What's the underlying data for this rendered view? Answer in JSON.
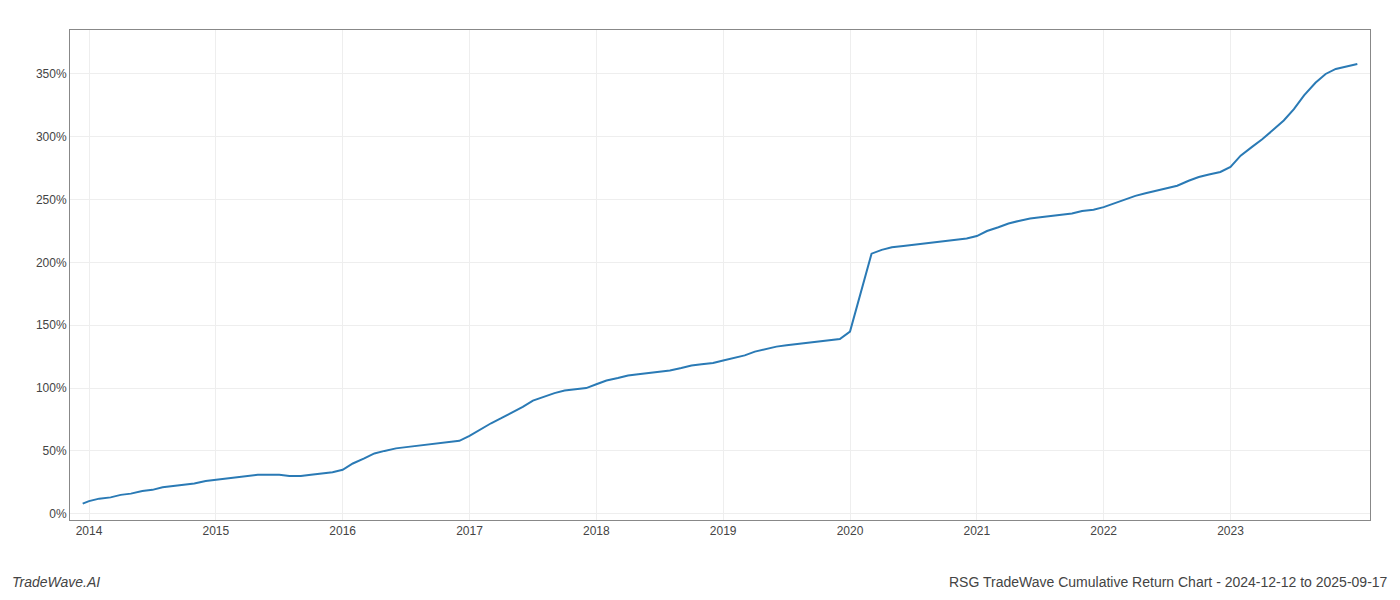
{
  "chart_data": {
    "type": "line",
    "title": "RSG TradeWave Cumulative Return Chart - 2024-12-12 to 2025-09-17",
    "annotations": [
      "TradeWave.AI"
    ],
    "color": "#2a7ab5",
    "grid": true,
    "x": [
      2013.95,
      2014.0,
      2014.08,
      2014.17,
      2014.25,
      2014.33,
      2014.42,
      2014.5,
      2014.58,
      2014.67,
      2014.75,
      2014.83,
      2014.92,
      2015.0,
      2015.08,
      2015.17,
      2015.25,
      2015.33,
      2015.42,
      2015.5,
      2015.58,
      2015.67,
      2015.75,
      2015.83,
      2015.92,
      2016.0,
      2016.08,
      2016.17,
      2016.25,
      2016.33,
      2016.42,
      2016.5,
      2016.58,
      2016.67,
      2016.75,
      2016.83,
      2016.92,
      2017.0,
      2017.08,
      2017.17,
      2017.25,
      2017.33,
      2017.42,
      2017.5,
      2017.58,
      2017.67,
      2017.75,
      2017.83,
      2017.92,
      2018.0,
      2018.08,
      2018.17,
      2018.25,
      2018.33,
      2018.42,
      2018.5,
      2018.58,
      2018.67,
      2018.75,
      2018.83,
      2018.92,
      2019.0,
      2019.08,
      2019.17,
      2019.25,
      2019.33,
      2019.42,
      2019.5,
      2019.58,
      2019.67,
      2019.75,
      2019.83,
      2019.92,
      2020.0,
      2020.08,
      2020.17,
      2020.25,
      2020.33,
      2020.42,
      2020.5,
      2020.58,
      2020.67,
      2020.75,
      2020.83,
      2020.92,
      2021.0,
      2021.08,
      2021.17,
      2021.25,
      2021.33,
      2021.42,
      2021.5,
      2021.58,
      2021.67,
      2021.75,
      2021.83,
      2021.92,
      2022.0,
      2022.08,
      2022.17,
      2022.25,
      2022.33,
      2022.42,
      2022.5,
      2022.58,
      2022.67,
      2022.75,
      2022.83,
      2022.92,
      2023.0,
      2023.08,
      2023.17,
      2023.25,
      2023.33,
      2023.42,
      2023.5,
      2023.58,
      2023.67,
      2023.75,
      2023.83,
      2023.92,
      2024.0
    ],
    "values": [
      8,
      10,
      12,
      13,
      15,
      16,
      18,
      19,
      21,
      22,
      23,
      24,
      26,
      27,
      28,
      29,
      30,
      31,
      31,
      31,
      30,
      30,
      31,
      32,
      33,
      35,
      40,
      44,
      48,
      50,
      52,
      53,
      54,
      55,
      56,
      57,
      58,
      62,
      67,
      72,
      76,
      80,
      85,
      90,
      93,
      96,
      98,
      99,
      100,
      103,
      106,
      108,
      110,
      111,
      112,
      113,
      114,
      116,
      118,
      119,
      120,
      122,
      124,
      126,
      129,
      131,
      133,
      134,
      135,
      136,
      137,
      138,
      139,
      145,
      175,
      207,
      210,
      212,
      213,
      214,
      215,
      216,
      217,
      218,
      219,
      221,
      225,
      228,
      231,
      233,
      235,
      236,
      237,
      238,
      239,
      241,
      242,
      244,
      247,
      250,
      253,
      255,
      257,
      259,
      261,
      265,
      268,
      270,
      272,
      276,
      285,
      292,
      298,
      305,
      313,
      322,
      333,
      343,
      350,
      354,
      356,
      358
    ],
    "xlim": [
      2013.85,
      2024.1
    ],
    "xticks": [
      2014,
      2015,
      2016,
      2017,
      2018,
      2019,
      2020,
      2021,
      2022,
      2023
    ],
    "ylim": [
      -5,
      385
    ],
    "yticks": [
      {
        "value": 0,
        "label": "0%"
      },
      {
        "value": 50,
        "label": "50%"
      },
      {
        "value": 100,
        "label": "100%"
      },
      {
        "value": 150,
        "label": "150%"
      },
      {
        "value": 200,
        "label": "200%"
      },
      {
        "value": 250,
        "label": "250%"
      },
      {
        "value": 300,
        "label": "300%"
      },
      {
        "value": 350,
        "label": "350%"
      }
    ]
  }
}
